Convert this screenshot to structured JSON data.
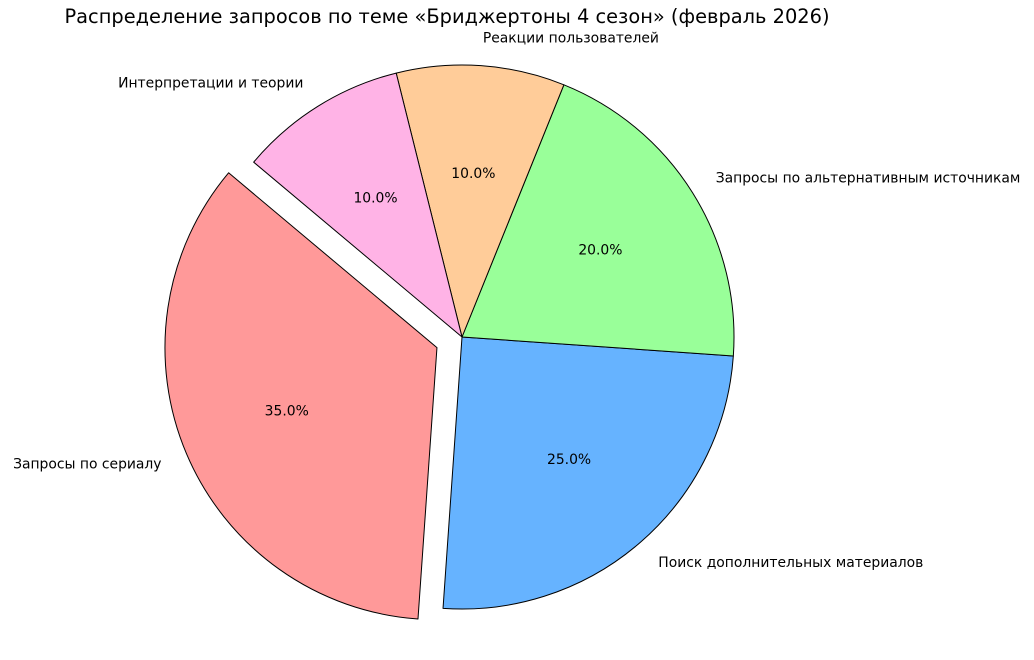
{
  "figure": {
    "background": "#ffffff"
  },
  "chart_data": {
    "type": "pie",
    "title": "Распределение запросов по теме «Бриджертоны 4 сезон» (февраль 2026)",
    "slices": [
      {
        "label": "Запросы по сериалу",
        "value": 35.0,
        "pct_label": "35.0%",
        "color": "#ff9999",
        "explode": 0.1
      },
      {
        "label": "Поиск дополнительных материалов",
        "value": 25.0,
        "pct_label": "25.0%",
        "color": "#66b3ff",
        "explode": 0
      },
      {
        "label": "Запросы по альтернативным источникам",
        "value": 20.0,
        "pct_label": "20.0%",
        "color": "#99ff99",
        "explode": 0
      },
      {
        "label": "Реакции пользователей",
        "value": 10.0,
        "pct_label": "10.0%",
        "color": "#ffcc99",
        "explode": 0
      },
      {
        "label": "Интерпретации и теории",
        "value": 10.0,
        "pct_label": "10.0%",
        "color": "#ffb3e6",
        "explode": 0
      }
    ],
    "start_angle": 140,
    "counterclock": true,
    "edge_color": "#000000",
    "text_color": "#000000",
    "legend": "none"
  }
}
